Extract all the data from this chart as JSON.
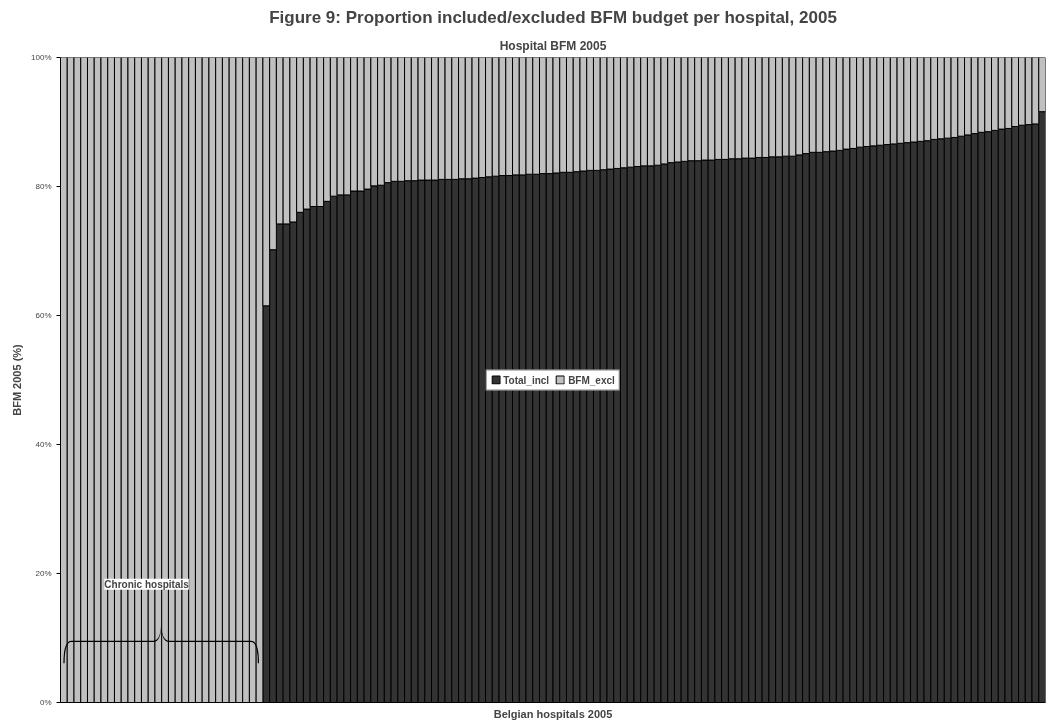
{
  "chart_data": {
    "type": "bar",
    "stacked": true,
    "annotations": [
      "Figure 9: Proportion included/excluded BFM budget per hospital, 2005",
      "Chronic hospitals"
    ],
    "title": "Hospital BFM 2005",
    "xlabel": "Belgian hospitals 2005",
    "ylabel": "BFM 2005 (%)",
    "categories": [
      null,
      null,
      null,
      null,
      null,
      null,
      null,
      null,
      null,
      null,
      null,
      null,
      null,
      null,
      null,
      null,
      null,
      null,
      null,
      null,
      null,
      null,
      null,
      null,
      null,
      null,
      null,
      null,
      null,
      null,
      null,
      null,
      null,
      null,
      null,
      null,
      null,
      null,
      null,
      null,
      null,
      null,
      null,
      null,
      null,
      null,
      null,
      null,
      null,
      null,
      null,
      null,
      null,
      null,
      null,
      null,
      null,
      null,
      null,
      null,
      null,
      null,
      null,
      null,
      null,
      null,
      null,
      null,
      null,
      null,
      null,
      null,
      null,
      null,
      null,
      null,
      null,
      null,
      null,
      null,
      null,
      null,
      null,
      null,
      null,
      null,
      null,
      null,
      null,
      null,
      null,
      null,
      null,
      null,
      null,
      null,
      null,
      null,
      null,
      null,
      null,
      null,
      null,
      null,
      null,
      null,
      null,
      null,
      null,
      null,
      null,
      null,
      null,
      null,
      null,
      null,
      null,
      null,
      null,
      null,
      null,
      null,
      null,
      null,
      null,
      null,
      null,
      null,
      null,
      null,
      null,
      null,
      null,
      null,
      null,
      null,
      null,
      null,
      null,
      null,
      null,
      null,
      null,
      null,
      null,
      null
    ],
    "series": [
      {
        "name": "Total_incl",
        "color": "#333333",
        "values": [
          0,
          0,
          0,
          0,
          0,
          0,
          0,
          0,
          0,
          0,
          0,
          0,
          0,
          0,
          0,
          0,
          0,
          0,
          0,
          0,
          0,
          0,
          0,
          0,
          0,
          0,
          0,
          0,
          0,
          0,
          61.5,
          70.2,
          74.2,
          74.2,
          74.5,
          76.0,
          76.5,
          76.9,
          76.9,
          77.7,
          78.5,
          78.7,
          78.7,
          79.3,
          79.3,
          79.6,
          80.1,
          80.2,
          80.6,
          80.8,
          80.8,
          80.9,
          80.9,
          81.0,
          81.0,
          81.0,
          81.1,
          81.1,
          81.1,
          81.2,
          81.2,
          81.3,
          81.4,
          81.5,
          81.6,
          81.7,
          81.7,
          81.8,
          81.8,
          81.9,
          81.9,
          82.0,
          82.0,
          82.1,
          82.2,
          82.2,
          82.3,
          82.4,
          82.5,
          82.5,
          82.6,
          82.7,
          82.8,
          82.9,
          83.0,
          83.1,
          83.2,
          83.2,
          83.3,
          83.5,
          83.7,
          83.8,
          83.9,
          84.0,
          84.0,
          84.1,
          84.1,
          84.2,
          84.2,
          84.3,
          84.3,
          84.4,
          84.4,
          84.5,
          84.5,
          84.6,
          84.6,
          84.7,
          84.7,
          84.9,
          85.1,
          85.3,
          85.3,
          85.4,
          85.5,
          85.6,
          85.8,
          85.9,
          86.1,
          86.2,
          86.3,
          86.4,
          86.5,
          86.6,
          86.7,
          86.8,
          86.9,
          87.0,
          87.1,
          87.3,
          87.4,
          87.5,
          87.6,
          87.8,
          88.0,
          88.2,
          88.4,
          88.5,
          88.7,
          88.9,
          89.0,
          89.3,
          89.5,
          89.6,
          89.7,
          91.6
        ]
      },
      {
        "name": "BFM_excl",
        "color": "#c0c0c0",
        "values": [
          100,
          100,
          100,
          100,
          100,
          100,
          100,
          100,
          100,
          100,
          100,
          100,
          100,
          100,
          100,
          100,
          100,
          100,
          100,
          100,
          100,
          100,
          100,
          100,
          100,
          100,
          100,
          100,
          100,
          100,
          38.5,
          29.8,
          25.8,
          25.8,
          25.5,
          24.0,
          23.5,
          23.1,
          23.1,
          22.3,
          21.5,
          21.3,
          21.3,
          20.7,
          20.7,
          20.4,
          19.9,
          19.8,
          19.4,
          19.2,
          19.2,
          19.1,
          19.1,
          19.0,
          19.0,
          19.0,
          18.9,
          18.9,
          18.9,
          18.8,
          18.8,
          18.7,
          18.6,
          18.5,
          18.4,
          18.3,
          18.3,
          18.2,
          18.2,
          18.1,
          18.1,
          18.0,
          18.0,
          17.9,
          17.8,
          17.8,
          17.7,
          17.6,
          17.5,
          17.5,
          17.4,
          17.3,
          17.2,
          17.1,
          17.0,
          16.9,
          16.8,
          16.8,
          16.7,
          16.5,
          16.3,
          16.2,
          16.1,
          16.0,
          16.0,
          15.9,
          15.9,
          15.8,
          15.8,
          15.7,
          15.7,
          15.6,
          15.6,
          15.5,
          15.5,
          15.4,
          15.4,
          15.3,
          15.3,
          15.1,
          14.9,
          14.7,
          14.7,
          14.6,
          14.5,
          14.4,
          14.2,
          14.1,
          13.9,
          13.8,
          13.7,
          13.6,
          13.5,
          13.4,
          13.3,
          13.2,
          13.1,
          13.0,
          12.9,
          12.7,
          12.6,
          12.5,
          12.4,
          12.2,
          12.0,
          11.8,
          11.6,
          11.5,
          11.3,
          11.1,
          11.0,
          10.7,
          10.5,
          10.4,
          10.3,
          8.4
        ]
      }
    ],
    "ylim": [
      0,
      100
    ],
    "yticks": [
      {
        "value": 0,
        "label": "0%"
      },
      {
        "value": 20,
        "label": "20%"
      },
      {
        "value": 40,
        "label": "40%"
      },
      {
        "value": 60,
        "label": "60%"
      },
      {
        "value": 80,
        "label": "80%"
      },
      {
        "value": 100,
        "label": "100%"
      }
    ],
    "tick_labels": "y",
    "legend": "center"
  }
}
